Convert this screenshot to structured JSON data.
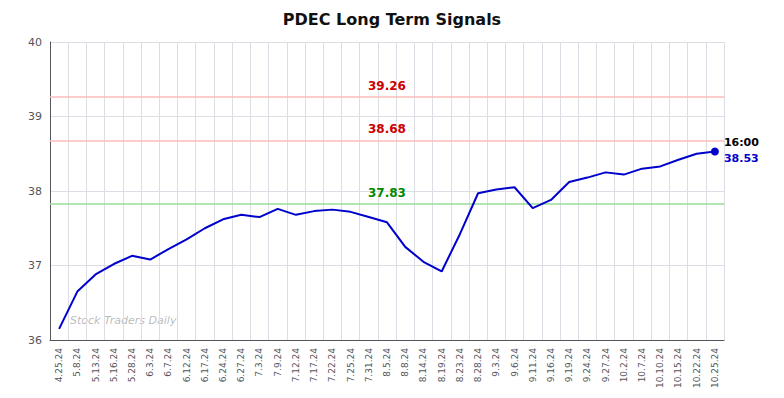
{
  "chart_data": {
    "type": "line",
    "title": "PDEC Long Term Signals",
    "categories": [
      "4.25.24",
      "5.8.24",
      "5.13.24",
      "5.16.24",
      "5.28.24",
      "6.3.24",
      "6.7.24",
      "6.12.24",
      "6.17.24",
      "6.24.24",
      "6.27.24",
      "7.3.24",
      "7.9.24",
      "7.12.24",
      "7.17.24",
      "7.22.24",
      "7.25.24",
      "7.31.24",
      "8.5.24",
      "8.8.24",
      "8.14.24",
      "8.19.24",
      "8.23.24",
      "8.28.24",
      "9.3.24",
      "9.6.24",
      "9.11.24",
      "9.16.24",
      "9.19.24",
      "9.24.24",
      "9.27.24",
      "10.2.24",
      "10.7.24",
      "10.10.24",
      "10.15.24",
      "10.22.24",
      "10.25.24"
    ],
    "values": [
      36.15,
      36.65,
      36.88,
      37.02,
      37.13,
      37.08,
      37.22,
      37.35,
      37.5,
      37.62,
      37.68,
      37.65,
      37.76,
      37.68,
      37.73,
      37.75,
      37.72,
      37.65,
      37.58,
      37.25,
      37.05,
      36.92,
      37.42,
      37.97,
      38.02,
      38.05,
      37.77,
      37.88,
      38.12,
      38.18,
      38.25,
      38.22,
      38.3,
      38.33,
      38.42,
      38.5,
      38.53
    ],
    "color": "#0000CC",
    "marker": "circle",
    "ylim": [
      36,
      40
    ],
    "yticks": [
      36,
      37,
      38,
      39,
      40
    ],
    "grid": true,
    "hlines": [
      {
        "value": 39.26,
        "label": "39.26",
        "color": "#cc0000",
        "line_color": "#ffbbbb"
      },
      {
        "value": 38.68,
        "label": "38.68",
        "color": "#cc0000",
        "line_color": "#ffbbbb"
      },
      {
        "value": 37.83,
        "label": "37.83",
        "color": "#008800",
        "line_color": "#99dd99"
      }
    ],
    "annotations": [
      {
        "text": "16:00",
        "color": "#000000"
      },
      {
        "text": "38.53",
        "color": "#0000CC"
      }
    ],
    "watermark": "Stock Traders Daily"
  }
}
